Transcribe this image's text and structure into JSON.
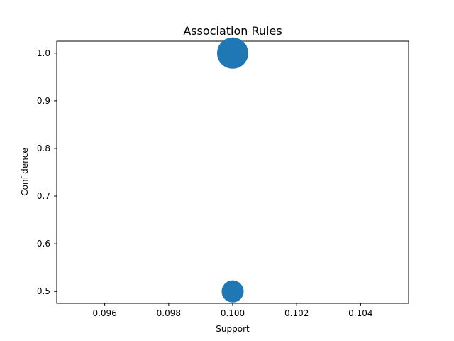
{
  "chart_data": {
    "type": "scatter",
    "title": "Association Rules",
    "xlabel": "Support",
    "ylabel": "Confidence",
    "xlim": [
      0.0945,
      0.1055
    ],
    "ylim": [
      0.475,
      1.025
    ],
    "xticks": [
      0.096,
      0.098,
      0.1,
      0.102,
      0.104
    ],
    "xtick_labels": [
      "0.096",
      "0.098",
      "0.100",
      "0.102",
      "0.104"
    ],
    "yticks": [
      0.5,
      0.6,
      0.7,
      0.8,
      0.9,
      1.0
    ],
    "ytick_labels": [
      "0.5",
      "0.6",
      "0.7",
      "0.8",
      "0.9",
      "1.0"
    ],
    "grid": false,
    "color": "#1f77b4",
    "points": [
      {
        "x": 0.1,
        "y": 1.0,
        "size": 1.0
      },
      {
        "x": 0.1,
        "y": 0.5,
        "size": 0.5
      }
    ]
  }
}
